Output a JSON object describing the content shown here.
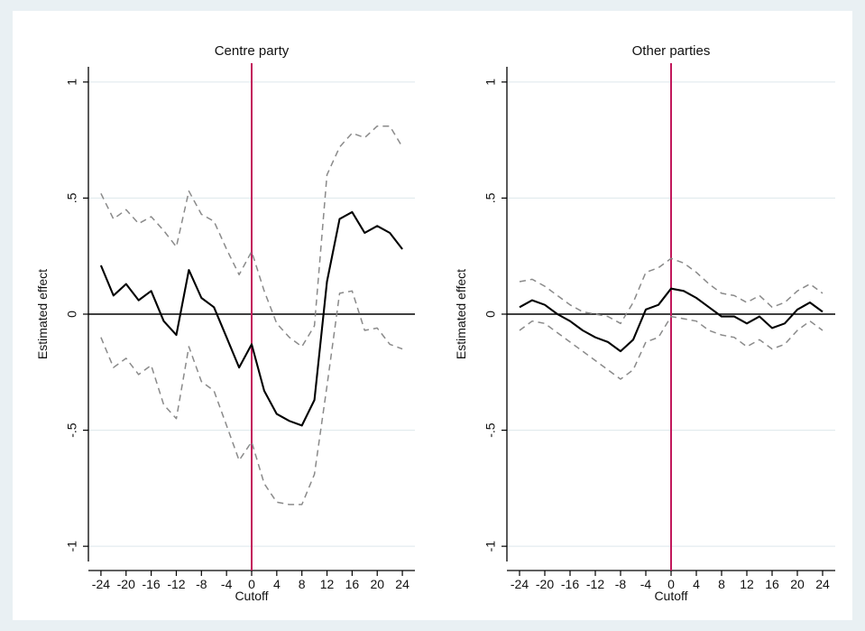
{
  "chart_data": [
    {
      "type": "line",
      "title": "Centre party",
      "xlabel": "Cutoff",
      "ylabel": "Estimated effect",
      "xlim": [
        -26,
        26
      ],
      "ylim": [
        -1.05,
        1.05
      ],
      "xticks": [
        -24,
        -20,
        -16,
        -12,
        -8,
        -4,
        0,
        4,
        8,
        12,
        16,
        20,
        24
      ],
      "xtick_labels": [
        "-24",
        "-20",
        "-16",
        "-12",
        "-8",
        "-4",
        "0",
        "4",
        "8",
        "12",
        "16",
        "20",
        "24"
      ],
      "yticks": [
        1,
        0.5,
        0,
        -0.5,
        -1
      ],
      "ytick_labels": [
        "1",
        ".5",
        "0",
        "-.5",
        "-1"
      ],
      "grid": true,
      "reference_lines": {
        "horizontal": 0,
        "vertical": 0
      },
      "x": [
        -24,
        -22,
        -20,
        -18,
        -16,
        -14,
        -12,
        -10,
        -8,
        -6,
        -4,
        -2,
        0,
        2,
        4,
        6,
        8,
        10,
        12,
        14,
        16,
        18,
        20,
        22,
        24
      ],
      "series": [
        {
          "role": "estimate",
          "values": [
            0.21,
            0.08,
            0.13,
            0.06,
            0.1,
            -0.03,
            -0.09,
            0.19,
            0.07,
            0.03,
            -0.1,
            -0.23,
            -0.13,
            -0.33,
            -0.43,
            -0.46,
            -0.48,
            -0.37,
            0.14,
            0.41,
            0.44,
            0.35,
            0.38,
            0.35,
            0.28
          ]
        },
        {
          "role": "upper-ci",
          "values": [
            0.52,
            0.41,
            0.45,
            0.39,
            0.42,
            0.36,
            0.29,
            0.53,
            0.43,
            0.4,
            0.28,
            0.17,
            0.27,
            0.1,
            -0.04,
            -0.1,
            -0.14,
            -0.05,
            0.6,
            0.72,
            0.78,
            0.76,
            0.81,
            0.81,
            0.72
          ]
        },
        {
          "role": "lower-ci",
          "values": [
            -0.1,
            -0.23,
            -0.19,
            -0.26,
            -0.22,
            -0.39,
            -0.45,
            -0.14,
            -0.29,
            -0.33,
            -0.48,
            -0.63,
            -0.55,
            -0.73,
            -0.81,
            -0.82,
            -0.82,
            -0.69,
            -0.31,
            0.09,
            0.1,
            -0.07,
            -0.06,
            -0.13,
            -0.15
          ]
        }
      ],
      "colors": {
        "estimate": "#000000",
        "ci": "#8a8a8a",
        "cutoff_line": "#c2185b",
        "zero_line": "#000000",
        "grid": "#dde8ec"
      }
    },
    {
      "type": "line",
      "title": "Other parties",
      "xlabel": "Cutoff",
      "ylabel": "Estimated effect",
      "xlim": [
        -26,
        26
      ],
      "ylim": [
        -1.05,
        1.05
      ],
      "xticks": [
        -24,
        -20,
        -16,
        -12,
        -8,
        -4,
        0,
        4,
        8,
        12,
        16,
        20,
        24
      ],
      "xtick_labels": [
        "-24",
        "-20",
        "-16",
        "-12",
        "-8",
        "-4",
        "0",
        "4",
        "8",
        "12",
        "16",
        "20",
        "24"
      ],
      "yticks": [
        1,
        0.5,
        0,
        -0.5,
        -1
      ],
      "ytick_labels": [
        "1",
        ".5",
        "0",
        "-.5",
        "-1"
      ],
      "grid": true,
      "reference_lines": {
        "horizontal": 0,
        "vertical": 0
      },
      "x": [
        -24,
        -22,
        -20,
        -18,
        -16,
        -14,
        -12,
        -10,
        -8,
        -6,
        -4,
        -2,
        0,
        2,
        4,
        6,
        8,
        10,
        12,
        14,
        16,
        18,
        20,
        22,
        24
      ],
      "series": [
        {
          "role": "estimate",
          "values": [
            0.03,
            0.06,
            0.04,
            0.0,
            -0.03,
            -0.07,
            -0.1,
            -0.12,
            -0.16,
            -0.11,
            0.02,
            0.04,
            0.11,
            0.1,
            0.07,
            0.03,
            -0.01,
            -0.01,
            -0.04,
            -0.01,
            -0.06,
            -0.04,
            0.02,
            0.05,
            0.01
          ]
        },
        {
          "role": "upper-ci",
          "values": [
            0.14,
            0.15,
            0.12,
            0.08,
            0.04,
            0.01,
            0.0,
            -0.01,
            -0.04,
            0.05,
            0.18,
            0.2,
            0.24,
            0.22,
            0.18,
            0.13,
            0.09,
            0.08,
            0.05,
            0.08,
            0.03,
            0.05,
            0.1,
            0.13,
            0.09
          ]
        },
        {
          "role": "lower-ci",
          "values": [
            -0.07,
            -0.03,
            -0.04,
            -0.08,
            -0.12,
            -0.16,
            -0.2,
            -0.24,
            -0.28,
            -0.24,
            -0.12,
            -0.1,
            -0.01,
            -0.02,
            -0.03,
            -0.07,
            -0.09,
            -0.1,
            -0.14,
            -0.11,
            -0.15,
            -0.13,
            -0.07,
            -0.03,
            -0.07
          ]
        }
      ],
      "colors": {
        "estimate": "#000000",
        "ci": "#8a8a8a",
        "cutoff_line": "#c2185b",
        "zero_line": "#000000",
        "grid": "#dde8ec"
      }
    }
  ]
}
